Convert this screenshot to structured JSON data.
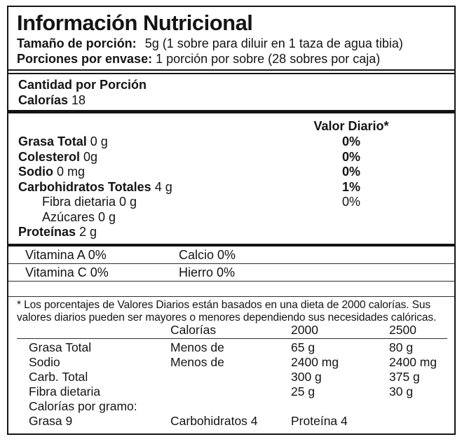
{
  "nutrition_label": {
    "title": "Información Nutricional",
    "serving": {
      "size_label": "Tamaño de porción:",
      "size_value": "5g (1 sobre para diluir en 1 taza de agua tibia)",
      "per_package_label": "Porciones por envase:",
      "per_package_value": "1 porción por sobre (28 sobres por caja)"
    },
    "amount_per_serving_label": "Cantidad por Porción",
    "calories": {
      "label": "Calorías",
      "value": "18"
    },
    "daily_value_header": "Valor Diario*",
    "nutrients": [
      {
        "name": "Grasa Total",
        "amount": "0 g",
        "daily_value": "0%"
      },
      {
        "name": "Colesterol",
        "amount": "0g",
        "daily_value": "0%"
      },
      {
        "name": "Sodio",
        "amount": "0 mg",
        "daily_value": "0%"
      },
      {
        "name": "Carbohidratos Totales",
        "amount": "4 g",
        "daily_value": "1%"
      },
      {
        "name": "Fibra dietaria",
        "amount": "0 g",
        "daily_value": "0%"
      },
      {
        "name": "Azúcares",
        "amount": "0 g",
        "daily_value": ""
      },
      {
        "name": "Proteínas",
        "amount": "2 g",
        "daily_value": ""
      }
    ],
    "micronutrients": [
      {
        "left": "Vitamina A 0%",
        "right": "Calcio 0%"
      },
      {
        "left": "Vitamina C 0%",
        "right": "Hierro 0%"
      }
    ],
    "footnote": "* Los porcentajes de Valores Diarios están basados en una dieta de 2000 calorías. Sus valores diarios pueden ser mayores o menores dependiendo sus necesidades calóricas.",
    "reference_table": {
      "headers": [
        "Calorías",
        "2000",
        "2500"
      ],
      "rows": [
        {
          "name": "Grasa Total",
          "qualifier": "Menos de",
          "v2000": "65 g",
          "v2500": "80 g"
        },
        {
          "name": "Sodio",
          "qualifier": "Menos de",
          "v2000": "2400 mg",
          "v2500": "2400 mg"
        },
        {
          "name": "Carb. Total",
          "qualifier": "",
          "v2000": "300 g",
          "v2500": "375 g"
        },
        {
          "name": "Fibra dietaria",
          "qualifier": "",
          "v2000": "25 g",
          "v2500": "30 g"
        }
      ]
    },
    "calories_per_gram": {
      "label": "Calorías por gramo:",
      "fat": "Grasa 9",
      "carbs": "Carbohidratos 4",
      "protein": "Proteína 4"
    }
  }
}
